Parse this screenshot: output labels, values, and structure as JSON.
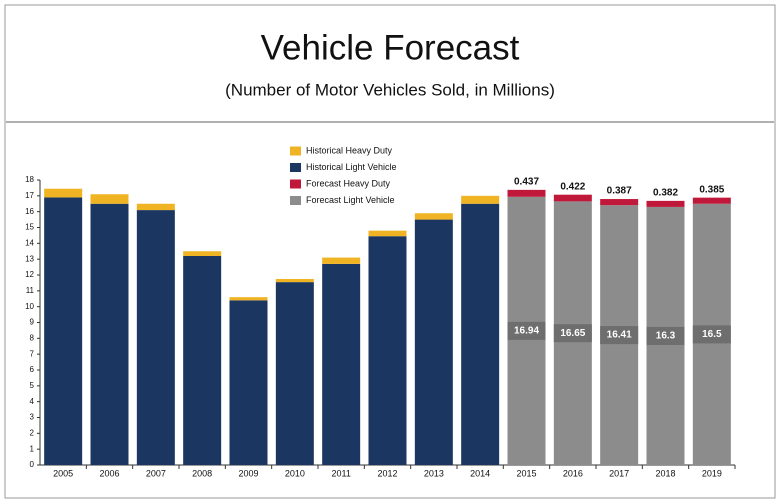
{
  "chart_data": {
    "type": "stacked_bar",
    "title": "Vehicle Forecast",
    "subtitle": "(Number of Motor Vehicles Sold, in Millions)",
    "categories": [
      "2005",
      "2006",
      "2007",
      "2008",
      "2009",
      "2010",
      "2011",
      "2012",
      "2013",
      "2014",
      "2015",
      "2016",
      "2017",
      "2018",
      "2019"
    ],
    "series": [
      {
        "name": "Historical Heavy  Duty",
        "color": "#f0b323",
        "values": [
          0.55,
          0.6,
          0.4,
          0.3,
          0.2,
          0.2,
          0.4,
          0.35,
          0.4,
          0.5,
          null,
          null,
          null,
          null,
          null
        ]
      },
      {
        "name": "Historical Light Vehicle",
        "color": "#1b3660",
        "values": [
          16.9,
          16.5,
          16.1,
          13.2,
          10.4,
          11.55,
          12.7,
          14.45,
          15.5,
          16.5,
          null,
          null,
          null,
          null,
          null
        ]
      },
      {
        "name": "Forecast Heavy  Duty",
        "color": "#c0183a",
        "data_labels": true,
        "values": [
          null,
          null,
          null,
          null,
          null,
          null,
          null,
          null,
          null,
          null,
          0.437,
          0.422,
          0.387,
          0.382,
          0.385
        ]
      },
      {
        "name": "Forecast Light Vehicle",
        "color": "#8c8c8c",
        "data_labels": true,
        "values": [
          null,
          null,
          null,
          null,
          null,
          null,
          null,
          null,
          null,
          null,
          16.94,
          16.65,
          16.41,
          16.3,
          16.5
        ]
      }
    ],
    "ylim": [
      0,
      18
    ],
    "yticks": [
      0,
      1,
      2,
      3,
      4,
      5,
      6,
      7,
      8,
      9,
      10,
      11,
      12,
      13,
      14,
      15,
      16,
      17,
      18
    ],
    "grid": false
  }
}
